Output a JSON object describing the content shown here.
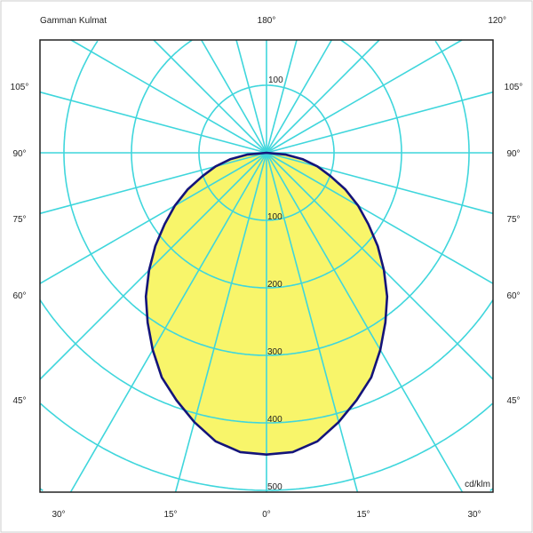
{
  "chart_data": {
    "type": "polar",
    "title": "Gamman Kulmat",
    "unit_label": "cd/klm",
    "radial_ticks_upper": [
      "100"
    ],
    "radial_ticks_lower": [
      "100",
      "200",
      "300",
      "400",
      "500"
    ],
    "rlim": [
      0,
      500
    ],
    "angle_labels": {
      "top_center": "180°",
      "top_right": "120°",
      "left": [
        "105°",
        "90°",
        "75°",
        "60°",
        "45°"
      ],
      "right": [
        "105°",
        "90°",
        "75°",
        "60°",
        "45°"
      ],
      "bottom": [
        "30°",
        "15°",
        "0°",
        "15°",
        "30°"
      ]
    },
    "grid": true,
    "grid_angle_step_deg": 15,
    "series": [
      {
        "gamma_deg": [
          0,
          5,
          10,
          15,
          20,
          25,
          30,
          35,
          40,
          45,
          50,
          55,
          60,
          65,
          70,
          75,
          80,
          85,
          90
        ],
        "values": [
          447,
          445,
          434,
          413,
          390,
          367,
          337,
          307,
          278,
          246,
          215,
          184,
          157,
          129,
          101,
          78,
          54,
          28,
          0
        ]
      }
    ],
    "colors": {
      "grid": "#3fd6dc",
      "curve": "#14147a",
      "fill": "#f8f56a",
      "frame": "#222222"
    }
  }
}
